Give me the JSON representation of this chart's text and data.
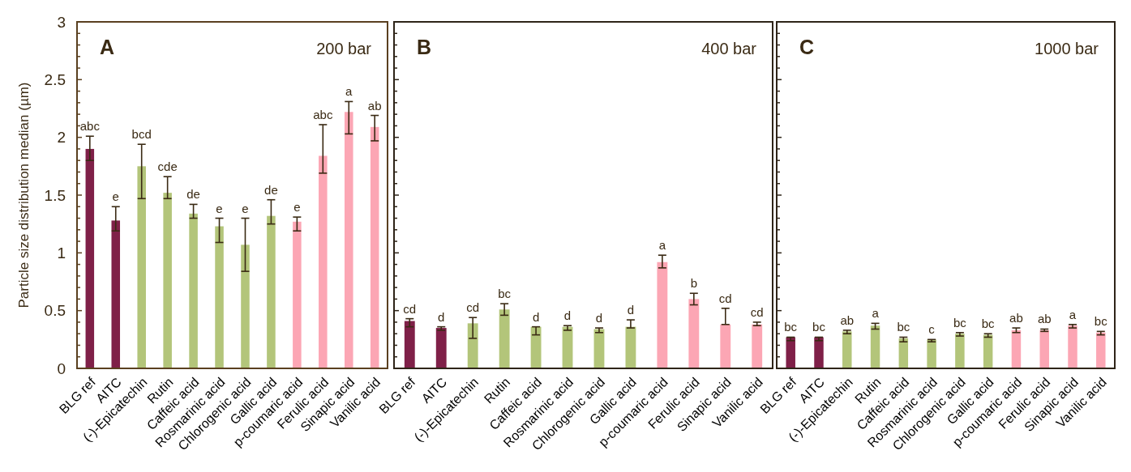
{
  "chart_data": [
    {
      "type": "bar",
      "title": "A",
      "subtitle": "200 bar",
      "ylabel": "Particle size distribution median (µm)",
      "categories": [
        "BLG ref",
        "AITC",
        "(-)-Epicatechin",
        "Rutin",
        "Caffeic acid",
        "Rosmarinic acid",
        "Chlorogenic acid",
        "Gallic acid",
        "p-coumaric acid",
        "Ferulic acid",
        "Sinapic acid",
        "Vanilic acid"
      ],
      "values": [
        1.9,
        1.28,
        1.75,
        1.52,
        1.34,
        1.23,
        1.07,
        1.32,
        1.27,
        1.84,
        2.22,
        2.09
      ],
      "errors": [
        [
          1.8,
          2.01
        ],
        [
          1.19,
          1.4
        ],
        [
          1.47,
          1.94
        ],
        [
          1.47,
          1.66
        ],
        [
          1.3,
          1.42
        ],
        [
          1.09,
          1.3
        ],
        [
          0.84,
          1.3
        ],
        [
          1.25,
          1.46
        ],
        [
          1.19,
          1.31
        ],
        [
          1.69,
          2.11
        ],
        [
          2.03,
          2.31
        ],
        [
          1.97,
          2.19
        ]
      ],
      "value_labels": [
        "abc",
        "e",
        "bcd",
        "cde",
        "de",
        "e",
        "e",
        "de",
        "e",
        "abc",
        "a",
        "ab"
      ],
      "colors": [
        "#7f2048",
        "#7f2048",
        "#b3c57a",
        "#b3c57a",
        "#b3c57a",
        "#b3c57a",
        "#b3c57a",
        "#b3c57a",
        "#fca6b4",
        "#fca6b4",
        "#fca6b4",
        "#fca6b4"
      ],
      "ylim": [
        0,
        3
      ],
      "yticks": [
        0,
        {
          "value": 0.1,
          "label": null
        },
        {
          "value": 0.2,
          "label": null
        },
        {
          "value": 0.3,
          "label": null
        },
        {
          "value": 0.4,
          "label": null
        },
        0.5,
        {
          "value": 0.6,
          "label": null
        },
        {
          "value": 0.7,
          "label": null
        },
        {
          "value": 0.8,
          "label": null
        },
        {
          "value": 0.9,
          "label": null
        },
        1,
        {
          "value": 1.1,
          "label": null
        },
        {
          "value": 1.2,
          "label": null
        },
        {
          "value": 1.3,
          "label": null
        },
        {
          "value": 1.4,
          "label": null
        },
        1.5,
        {
          "value": 1.6,
          "label": null
        },
        {
          "value": 1.7,
          "label": null
        },
        {
          "value": 1.8,
          "label": null
        },
        {
          "value": 1.9,
          "label": null
        },
        2,
        {
          "value": 2.1,
          "label": null
        },
        {
          "value": 2.2,
          "label": null
        },
        {
          "value": 2.3,
          "label": null
        },
        {
          "value": 2.4,
          "label": null
        },
        2.5,
        {
          "value": 2.6,
          "label": null
        },
        {
          "value": 2.7,
          "label": null
        },
        {
          "value": 2.8,
          "label": null
        },
        {
          "value": 2.9,
          "label": null
        },
        3
      ],
      "grid": false
    },
    {
      "type": "bar",
      "title": "B",
      "subtitle": "400 bar",
      "categories": [
        "BLG ref",
        "AITC",
        "(-)-Epicatechin",
        "Rutin",
        "Caffeic acid",
        "Rosmarinic acid",
        "Chlorogenic acid",
        "Gallic acid",
        "p-coumaric acid",
        "Ferulic acid",
        "Sinapic acid",
        "Vanilic acid"
      ],
      "values": [
        0.41,
        0.35,
        0.39,
        0.51,
        0.36,
        0.36,
        0.34,
        0.36,
        0.92,
        0.6,
        0.38,
        0.38
      ],
      "errors": [
        [
          0.36,
          0.43
        ],
        [
          0.33,
          0.36
        ],
        [
          0.26,
          0.44
        ],
        [
          0.46,
          0.56
        ],
        [
          0.29,
          0.36
        ],
        [
          0.33,
          0.37
        ],
        [
          0.31,
          0.35
        ],
        [
          0.35,
          0.42
        ],
        [
          0.87,
          0.98
        ],
        [
          0.55,
          0.65
        ],
        [
          0.38,
          0.52
        ],
        [
          0.37,
          0.4
        ]
      ],
      "value_labels": [
        "cd",
        "d",
        "cd",
        "bc",
        "d",
        "d",
        "d",
        "d",
        "a",
        "b",
        "cd",
        "cd"
      ],
      "colors": [
        "#7f2048",
        "#7f2048",
        "#b3c57a",
        "#b3c57a",
        "#b3c57a",
        "#b3c57a",
        "#b3c57a",
        "#b3c57a",
        "#fca6b4",
        "#fca6b4",
        "#fca6b4",
        "#fca6b4"
      ],
      "ylim": [
        0,
        3
      ],
      "yticks": [
        0,
        {
          "value": 0.1,
          "label": null
        },
        {
          "value": 0.2,
          "label": null
        },
        {
          "value": 0.3,
          "label": null
        },
        {
          "value": 0.4,
          "label": null
        },
        0.5,
        {
          "value": 0.6,
          "label": null
        },
        {
          "value": 0.7,
          "label": null
        },
        {
          "value": 0.8,
          "label": null
        },
        {
          "value": 0.9,
          "label": null
        },
        1,
        {
          "value": 1.1,
          "label": null
        },
        {
          "value": 1.2,
          "label": null
        },
        {
          "value": 1.3,
          "label": null
        },
        {
          "value": 1.4,
          "label": null
        },
        1.5,
        {
          "value": 1.6,
          "label": null
        },
        {
          "value": 1.7,
          "label": null
        },
        {
          "value": 1.8,
          "label": null
        },
        {
          "value": 1.9,
          "label": null
        },
        2,
        {
          "value": 2.1,
          "label": null
        },
        {
          "value": 2.2,
          "label": null
        },
        {
          "value": 2.3,
          "label": null
        },
        {
          "value": 2.4,
          "label": null
        },
        2.5,
        {
          "value": 2.6,
          "label": null
        },
        {
          "value": 2.7,
          "label": null
        },
        {
          "value": 2.8,
          "label": null
        },
        {
          "value": 2.9,
          "label": null
        },
        3
      ],
      "tick_labels": "x",
      "grid": false
    },
    {
      "type": "bar",
      "title": "C",
      "subtitle": "1000 bar",
      "categories": [
        "BLG ref",
        "AITC",
        "(-)-Epicatechin",
        "Rutin",
        "Caffeic acid",
        "Rosmarinic acid",
        "Chlorogenic acid",
        "Gallic acid",
        "p-coumaric acid",
        "Ferulic acid",
        "Sinapic acid",
        "Vanilic acid"
      ],
      "values": [
        0.27,
        0.27,
        0.32,
        0.37,
        0.26,
        0.25,
        0.3,
        0.29,
        0.33,
        0.33,
        0.37,
        0.31
      ],
      "errors": [
        [
          0.24,
          0.27
        ],
        [
          0.24,
          0.27
        ],
        [
          0.3,
          0.33
        ],
        [
          0.34,
          0.39
        ],
        [
          0.23,
          0.27
        ],
        [
          0.23,
          0.25
        ],
        [
          0.28,
          0.31
        ],
        [
          0.27,
          0.3
        ],
        [
          0.31,
          0.35
        ],
        [
          0.32,
          0.34
        ],
        [
          0.35,
          0.38
        ],
        [
          0.29,
          0.32
        ]
      ],
      "value_labels": [
        "bc",
        "bc",
        "ab",
        "a",
        "bc",
        "c",
        "bc",
        "bc",
        "ab",
        "ab",
        "a",
        "bc"
      ],
      "colors": [
        "#7f2048",
        "#7f2048",
        "#b3c57a",
        "#b3c57a",
        "#b3c57a",
        "#b3c57a",
        "#b3c57a",
        "#b3c57a",
        "#fca6b4",
        "#fca6b4",
        "#fca6b4",
        "#fca6b4"
      ],
      "ylim": [
        0,
        3
      ],
      "yticks": [
        0,
        {
          "value": 0.1,
          "label": null
        },
        {
          "value": 0.2,
          "label": null
        },
        {
          "value": 0.3,
          "label": null
        },
        {
          "value": 0.4,
          "label": null
        },
        0.5,
        {
          "value": 0.6,
          "label": null
        },
        {
          "value": 0.7,
          "label": null
        },
        {
          "value": 0.8,
          "label": null
        },
        {
          "value": 0.9,
          "label": null
        },
        1,
        {
          "value": 1.1,
          "label": null
        },
        {
          "value": 1.2,
          "label": null
        },
        {
          "value": 1.3,
          "label": null
        },
        {
          "value": 1.4,
          "label": null
        },
        1.5,
        {
          "value": 1.6,
          "label": null
        },
        {
          "value": 1.7,
          "label": null
        },
        {
          "value": 1.8,
          "label": null
        },
        {
          "value": 1.9,
          "label": null
        },
        2,
        {
          "value": 2.1,
          "label": null
        },
        {
          "value": 2.2,
          "label": null
        },
        {
          "value": 2.3,
          "label": null
        },
        {
          "value": 2.4,
          "label": null
        },
        2.5,
        {
          "value": 2.6,
          "label": null
        },
        {
          "value": 2.7,
          "label": null
        },
        {
          "value": 2.8,
          "label": null
        },
        {
          "value": 2.9,
          "label": null
        },
        3
      ],
      "tick_labels": "x",
      "grid": false
    }
  ]
}
